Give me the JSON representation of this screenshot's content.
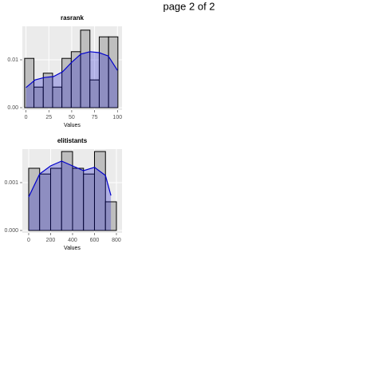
{
  "page_title": "page 2 of 2",
  "chart_data": [
    {
      "type": "histogram",
      "title": "rasrank",
      "x_label": "Values",
      "bins": [
        -1.5,
        8.7,
        18.9,
        29.1,
        39.3,
        49.5,
        59.7,
        69.9,
        80.1,
        90.3,
        100.5
      ],
      "values": [
        0.0103,
        0.0043,
        0.0072,
        0.0043,
        0.0103,
        0.0117,
        0.0162,
        0.0058,
        0.0148,
        0.0148
      ],
      "density": {
        "x": [
          0,
          10,
          20,
          30,
          40,
          50,
          60,
          70,
          80,
          90,
          100
        ],
        "y": [
          0.0042,
          0.0058,
          0.0063,
          0.0065,
          0.0075,
          0.0095,
          0.0112,
          0.0117,
          0.0115,
          0.0108,
          0.0078
        ]
      },
      "xlim": [
        -4,
        105
      ],
      "ylim": [
        -0.0005,
        0.017
      ],
      "xticks": [
        0,
        25,
        50,
        75,
        100
      ],
      "yticks": [
        {
          "value": 0,
          "label": "0.00"
        },
        {
          "value": 0.01,
          "label": "0.01"
        }
      ],
      "bar_color": "#bebebe",
      "density_color": "#0000cc",
      "grid": true
    },
    {
      "type": "histogram",
      "title": "elitistants",
      "x_label": "Values",
      "bins": [
        0,
        100,
        200,
        300,
        400,
        500,
        600,
        700,
        800
      ],
      "values": [
        0.0013,
        0.00118,
        0.0013,
        0.00165,
        0.0013,
        0.00118,
        0.00165,
        0.0006
      ],
      "density": {
        "x": [
          0,
          100,
          200,
          300,
          400,
          500,
          600,
          700,
          750
        ],
        "y": [
          0.0007,
          0.00118,
          0.00135,
          0.00145,
          0.00135,
          0.00125,
          0.00132,
          0.00115,
          0.00073
        ]
      },
      "xlim": [
        -58,
        851
      ],
      "ylim": [
        -5e-05,
        0.0017
      ],
      "xticks": [
        0,
        200,
        400,
        600,
        800
      ],
      "yticks": [
        {
          "value": 0,
          "label": "0.000"
        },
        {
          "value": 0.001,
          "label": "0.001"
        }
      ],
      "bar_color": "#bebebe",
      "density_color": "#0000cc",
      "grid": true
    }
  ]
}
